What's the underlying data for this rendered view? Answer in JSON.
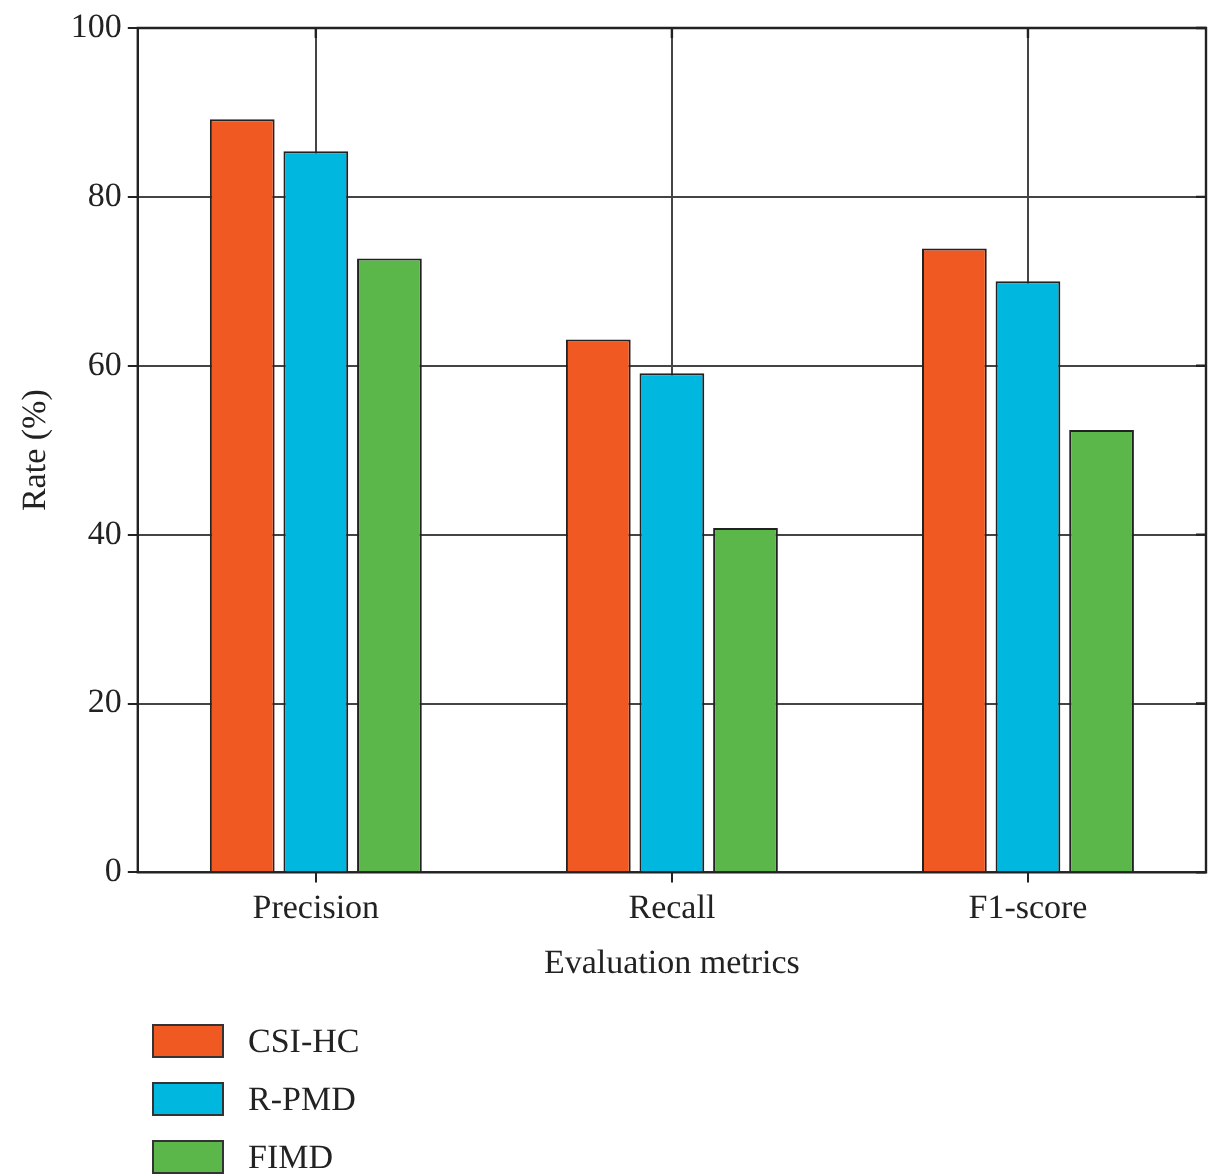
{
  "chart_data": {
    "type": "bar",
    "xlabel": "Evaluation metrics",
    "ylabel": "Rate (%)",
    "categories": [
      "Precision",
      "Recall",
      "F1-score"
    ],
    "series": [
      {
        "name": "CSI-HC",
        "color": "#f05a22",
        "values": [
          89.2,
          63.1,
          73.9
        ]
      },
      {
        "name": "R-PMD",
        "color": "#00b7e0",
        "values": [
          85.4,
          59.1,
          70.0
        ]
      },
      {
        "name": "FIMD",
        "color": "#5bb749",
        "values": [
          72.7,
          40.8,
          52.4
        ]
      }
    ],
    "ylim": [
      0,
      100
    ],
    "yticks": [
      0,
      20,
      40,
      60,
      80,
      100
    ],
    "grid": true,
    "legend": "bottom left"
  }
}
